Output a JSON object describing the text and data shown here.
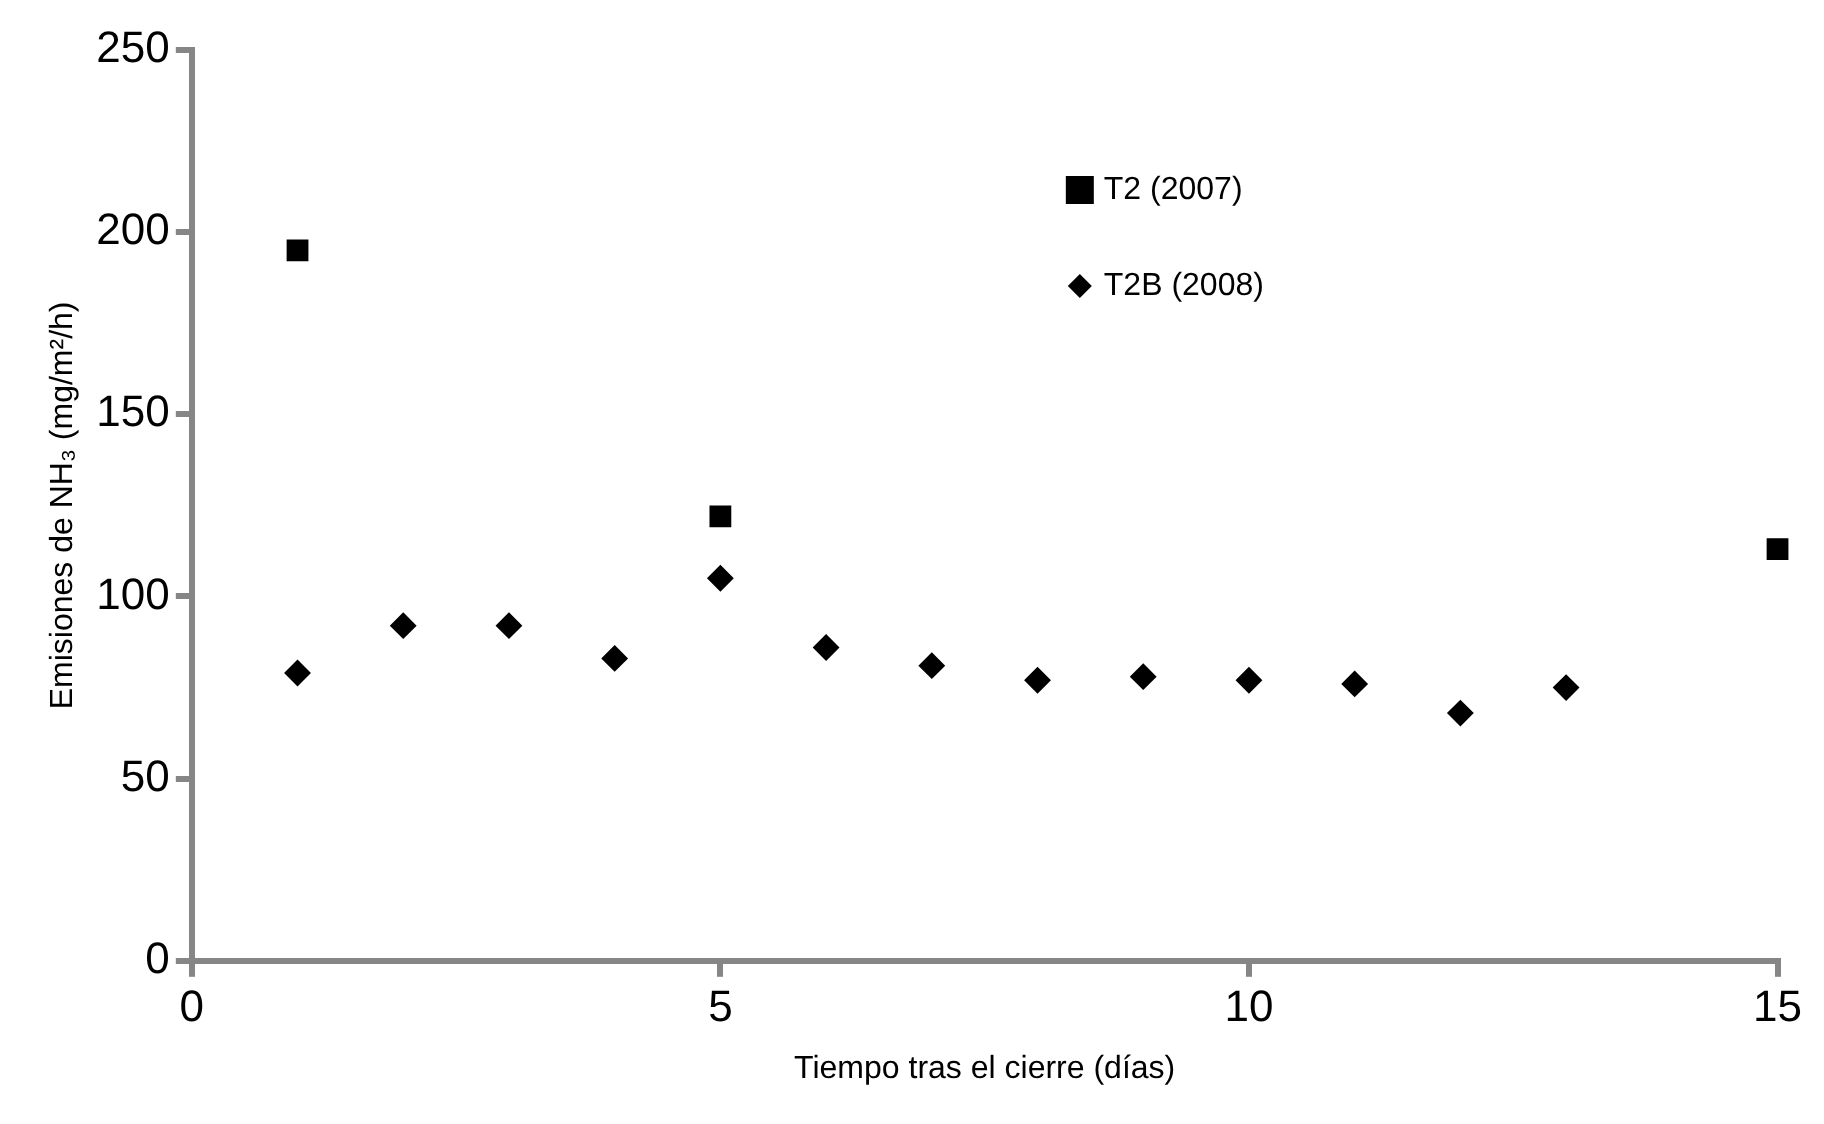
{
  "chart_data": {
    "type": "scatter",
    "xlabel": "Tiempo tras el cierre (días)",
    "ylabel": "Emisiones de NH₃ (mg/m²/h)",
    "series": [
      {
        "name": "T2 (2007)",
        "color": "#000000",
        "marker": "square",
        "x": [
          1,
          5,
          15
        ],
        "values": [
          195,
          122,
          113
        ]
      },
      {
        "name": "T2B (2008)",
        "color": "#000000",
        "marker": "diamond",
        "x": [
          1,
          2,
          3,
          4,
          5,
          6,
          7,
          8,
          9,
          10,
          11,
          12,
          13
        ],
        "values": [
          79,
          92,
          92,
          83,
          105,
          86,
          81,
          77,
          78,
          77,
          76,
          68,
          75
        ]
      }
    ],
    "xlim": [
      0,
      15
    ],
    "xticks": [
      0,
      5,
      10,
      15
    ],
    "ylim": [
      0,
      250
    ],
    "yticks": [
      0,
      50,
      100,
      150,
      200,
      250
    ],
    "grid": false,
    "legend": "top right"
  }
}
